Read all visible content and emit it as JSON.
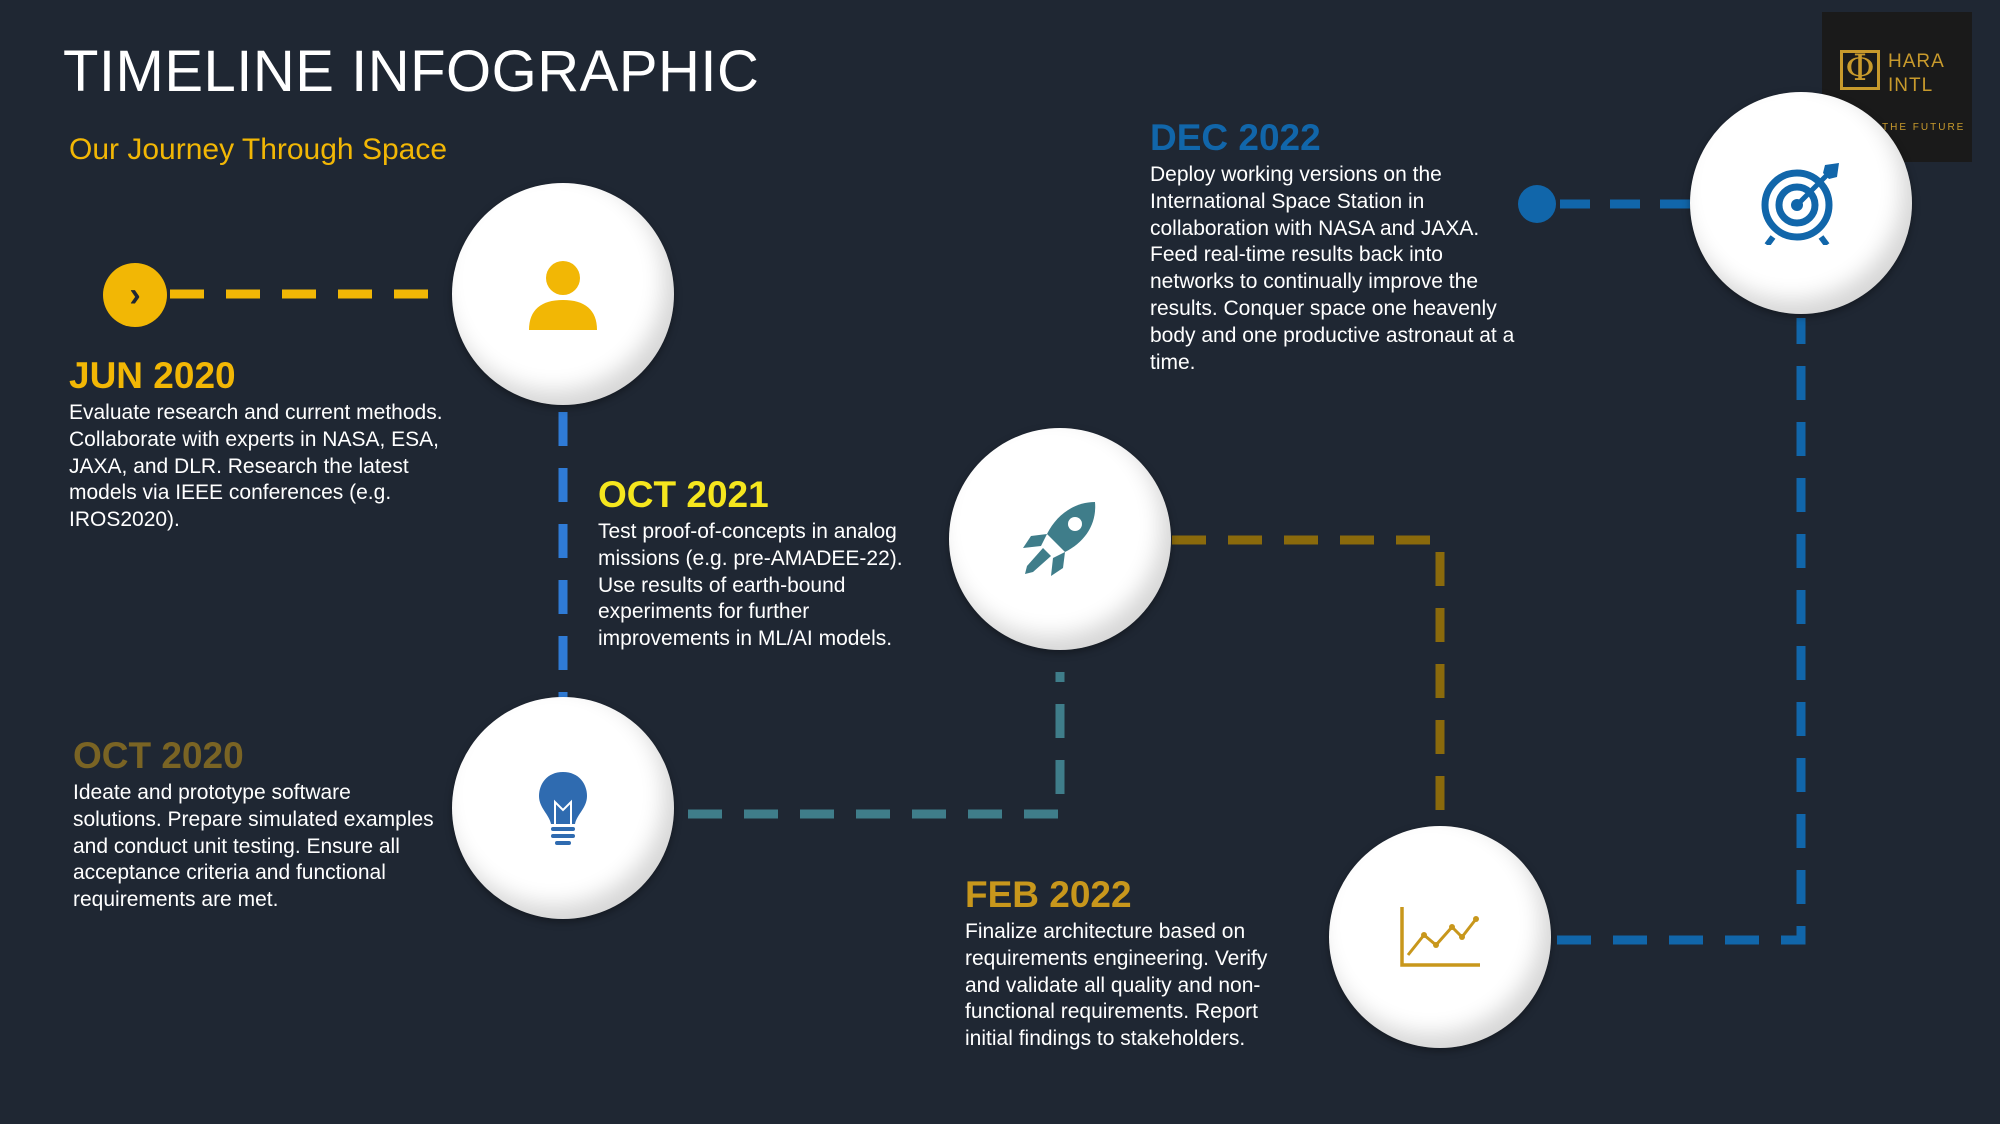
{
  "header": {
    "title": "TIMELINE INFOGRAPHIC",
    "subtitle": "Our Journey Through Space"
  },
  "logo": {
    "symbol": "Φ",
    "name": "HARA\nINTL",
    "tagline": "THE FUTURE"
  },
  "colors": {
    "background": "#1f2733",
    "yellow": "#f2b705",
    "blue": "#2f7bd6",
    "teal": "#3f7d8a",
    "gold": "#8a6a0c",
    "navy": "#1166aa",
    "brown": "#7a6424"
  },
  "milestones": [
    {
      "date": "JUN 2020",
      "color": "#f2b705",
      "icon": "person-icon",
      "description": "Evaluate research and current methods. Collaborate with experts in NASA, ESA, JAXA, and DLR. Research the latest models via IEEE conferences (e.g. IROS2020)."
    },
    {
      "date": "OCT 2020",
      "color": "#7a6424",
      "icon": "lightbulb-icon",
      "description": "Ideate and prototype software solutions. Prepare simulated examples and conduct unit testing. Ensure all acceptance criteria and functional requirements are met."
    },
    {
      "date": "OCT 2021",
      "color": "#f5e61e",
      "icon": "rocket-icon",
      "description": "Test proof-of-concepts in analog missions (e.g. pre-AMADEE-22). Use results of earth-bound experiments for further improvements in ML/AI models."
    },
    {
      "date": "FEB 2022",
      "color": "#c8971c",
      "icon": "line-chart-icon",
      "description": "Finalize architecture based on requirements engineering. Verify and validate all quality and non-functional requirements. Report initial findings to stakeholders."
    },
    {
      "date": "DEC 2022",
      "color": "#1166aa",
      "icon": "target-icon",
      "description": "Deploy working versions on the International Space Station in collaboration with NASA and JAXA. Feed real-time results back into networks to continually improve the results. Conquer space one heavenly body and one productive astronaut at a time."
    }
  ]
}
